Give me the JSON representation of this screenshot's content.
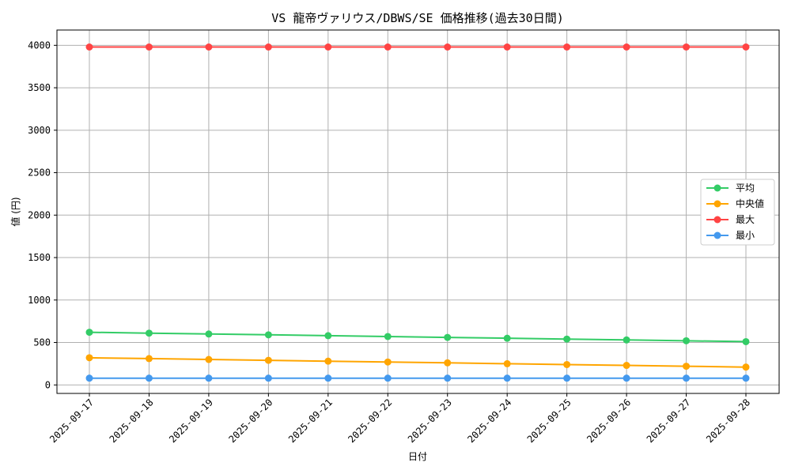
{
  "chart_data": {
    "type": "line",
    "title": "VS 龍帝ヴァリウス/DBWS/SE 価格推移(過去30日間)",
    "xlabel": "日付",
    "ylabel": "値 (円)",
    "categories": [
      "2025-09-17",
      "2025-09-18",
      "2025-09-19",
      "2025-09-20",
      "2025-09-21",
      "2025-09-22",
      "2025-09-23",
      "2025-09-24",
      "2025-09-25",
      "2025-09-26",
      "2025-09-27",
      "2025-09-28"
    ],
    "ylim": [
      -100,
      4180
    ],
    "yticks": [
      0,
      500,
      1000,
      1500,
      2000,
      2500,
      3000,
      3500,
      4000
    ],
    "grid": true,
    "legend_position": "center-right",
    "series": [
      {
        "name": "平均",
        "color": "#33cc66",
        "values": [
          620,
          610,
          600,
          590,
          580,
          570,
          560,
          550,
          540,
          530,
          520,
          510
        ]
      },
      {
        "name": "中央値",
        "color": "#ffa500",
        "values": [
          320,
          310,
          300,
          290,
          280,
          270,
          260,
          250,
          240,
          230,
          220,
          210
        ]
      },
      {
        "name": "最大",
        "color": "#ff4444",
        "values": [
          3980,
          3980,
          3980,
          3980,
          3980,
          3980,
          3980,
          3980,
          3980,
          3980,
          3980,
          3980
        ]
      },
      {
        "name": "最小",
        "color": "#4499ee",
        "values": [
          80,
          80,
          80,
          80,
          80,
          80,
          80,
          80,
          80,
          80,
          80,
          80
        ]
      }
    ]
  }
}
